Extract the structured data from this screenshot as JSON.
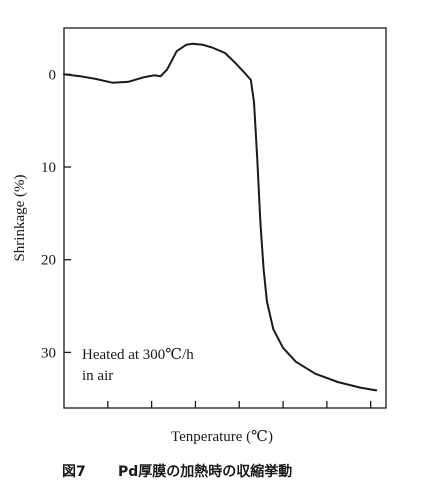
{
  "chart_data": {
    "type": "line",
    "title": "",
    "xlabel": "Tenperature (℃)",
    "ylabel": "Shrinkage (%)",
    "y_inverted": true,
    "ylim": [
      -5,
      36
    ],
    "yticks": [
      0,
      10,
      20,
      30
    ],
    "x_tick_count": 7,
    "x_tick_labels": [],
    "grid": false,
    "annotation": [
      "Heated at 300℃/h",
      "in air"
    ],
    "series": [
      {
        "x": [
          0,
          0.05,
          0.1,
          0.15,
          0.2,
          0.25,
          0.28,
          0.3,
          0.32,
          0.35,
          0.38,
          0.4,
          0.43,
          0.46,
          0.5,
          0.53,
          0.56,
          0.58,
          0.59,
          0.6,
          0.61,
          0.62,
          0.63,
          0.65,
          0.68,
          0.72,
          0.78,
          0.85,
          0.92,
          0.97
        ],
        "y": [
          0,
          0.2,
          0.5,
          0.9,
          0.8,
          0.3,
          0.1,
          0.2,
          -0.5,
          -2.5,
          -3.2,
          -3.3,
          -3.2,
          -2.9,
          -2.3,
          -1.3,
          -0.2,
          0.6,
          3.0,
          9.0,
          16.0,
          21.0,
          24.5,
          27.5,
          29.5,
          31.0,
          32.3,
          33.2,
          33.8,
          34.1
        ]
      }
    ]
  },
  "caption": {
    "label": "図7",
    "text": "Pd厚膜の加熱時の収縮挙動"
  },
  "colors": {
    "line": "#1a1a1a",
    "axis": "#1a1a1a",
    "background": "#ffffff"
  }
}
